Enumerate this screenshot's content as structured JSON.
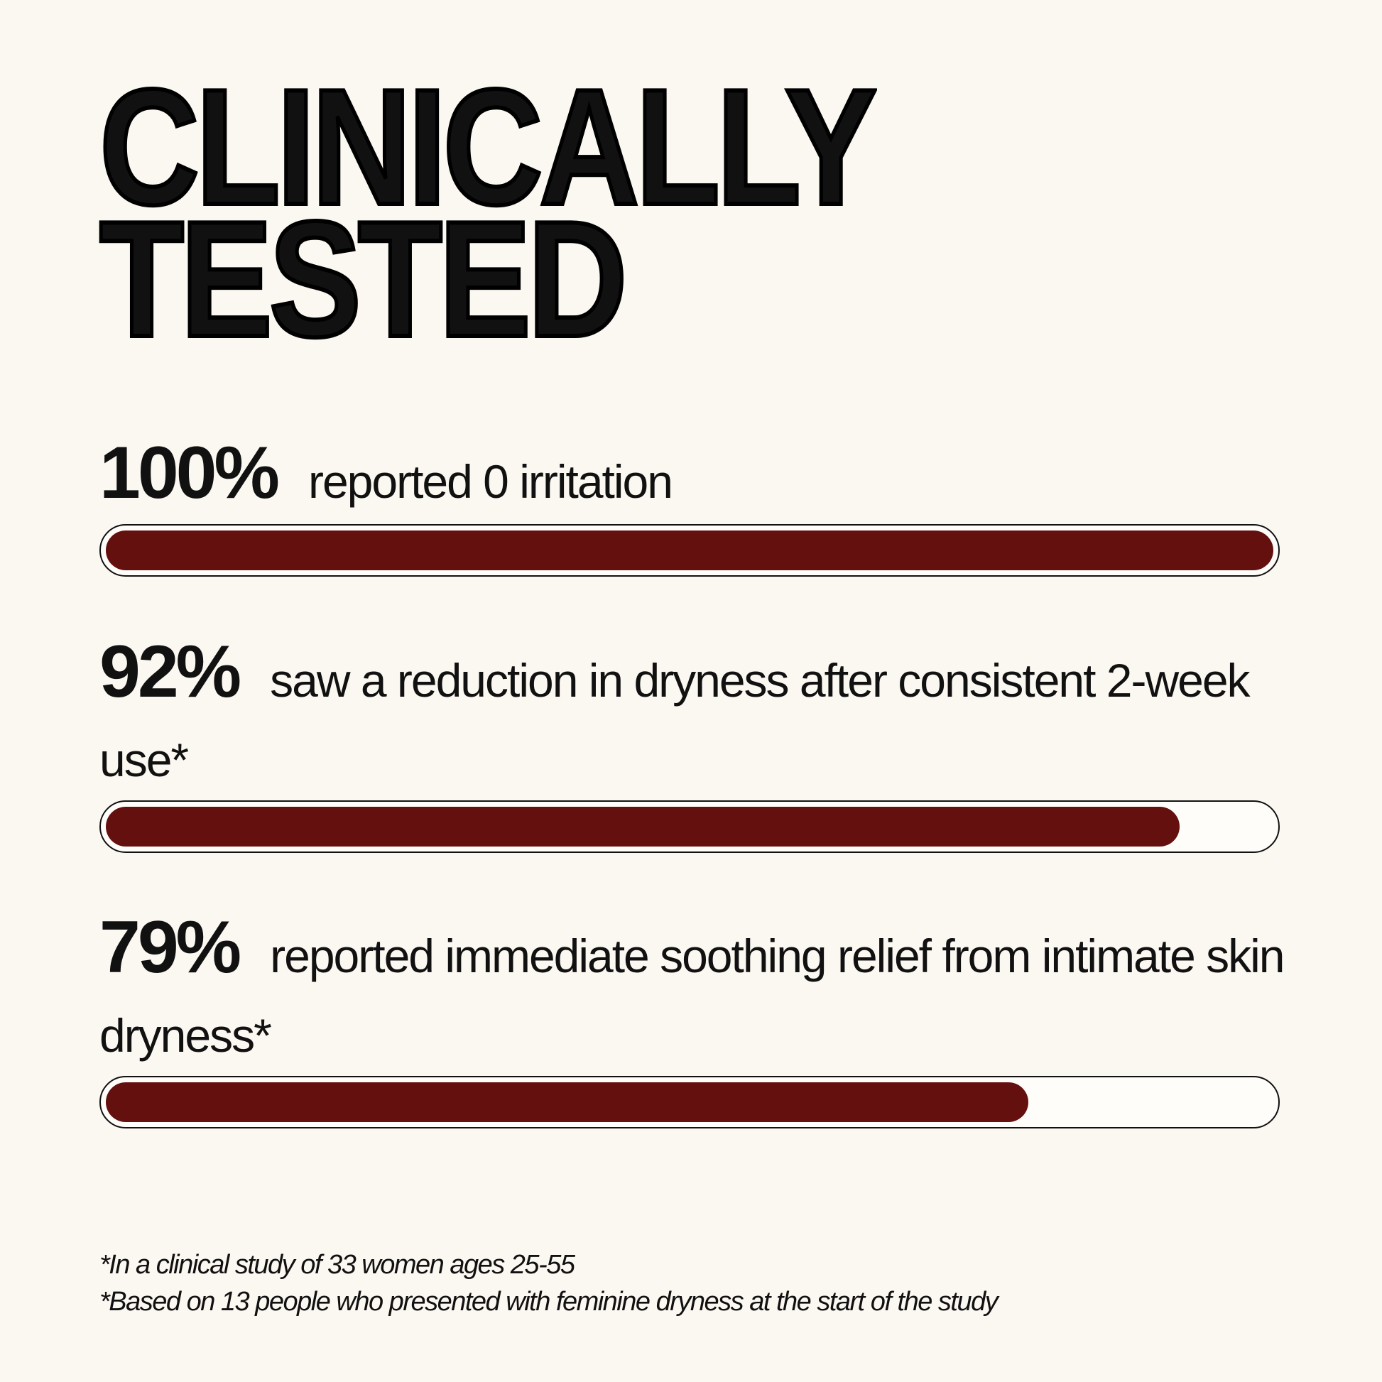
{
  "chart_data": {
    "type": "progress",
    "title_lines": [
      "CLINICALLY",
      "TESTED"
    ],
    "categories": [
      "reported 0 irritation",
      "saw a reduction in dryness after consistent 2-week use*",
      "reported immediate soothing relief from intimate skin dryness*"
    ],
    "values": [
      100,
      92,
      79
    ],
    "value_labels": [
      "100%",
      "92%",
      "79%"
    ],
    "xlim": [
      0,
      100
    ],
    "color": "#63100f",
    "footnotes": [
      "*In a clinical study of 33 women ages 25-55",
      "*Based on 13 people who presented with feminine dryness at the start of the study"
    ]
  }
}
